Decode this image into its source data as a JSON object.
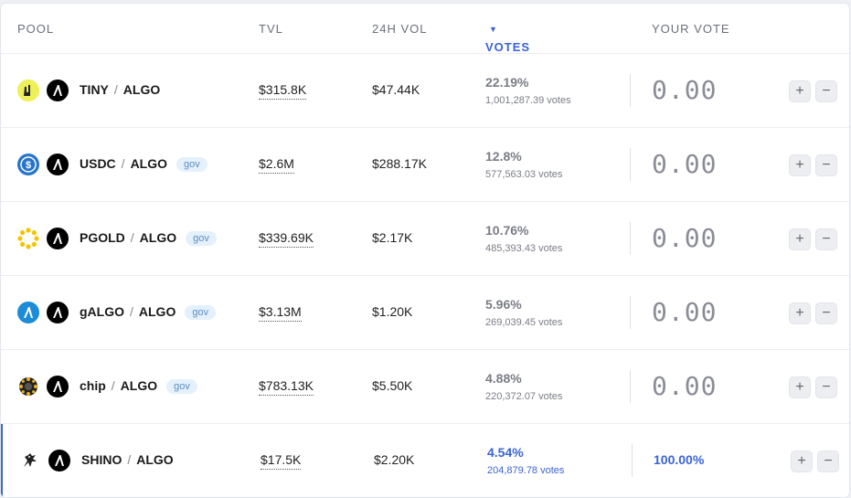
{
  "header": {
    "pool": "POOL",
    "tvl": "TVL",
    "vol": "24H VOL",
    "votes": "VOTES",
    "your_vote": "YOUR VOTE"
  },
  "rows": [
    {
      "token": "TINY",
      "base": "ALGO",
      "gov": "",
      "tvl": "$315.8K",
      "vol": "$47.44K",
      "pct": "22.19%",
      "votes": "1,001,287.39 votes",
      "your_vote": "0.00",
      "icon": "tiny-token-icon"
    },
    {
      "token": "USDC",
      "base": "ALGO",
      "gov": "gov",
      "tvl": "$2.6M",
      "vol": "$288.17K",
      "pct": "12.8%",
      "votes": "577,563.03 votes",
      "your_vote": "0.00",
      "icon": "usdc-token-icon"
    },
    {
      "token": "PGOLD",
      "base": "ALGO",
      "gov": "gov",
      "tvl": "$339.69K",
      "vol": "$2.17K",
      "pct": "10.76%",
      "votes": "485,393.43 votes",
      "your_vote": "0.00",
      "icon": "pgold-token-icon"
    },
    {
      "token": "gALGO",
      "base": "ALGO",
      "gov": "gov",
      "tvl": "$3.13M",
      "vol": "$1.20K",
      "pct": "5.96%",
      "votes": "269,039.45 votes",
      "your_vote": "0.00",
      "icon": "galgo-token-icon"
    },
    {
      "token": "chip",
      "base": "ALGO",
      "gov": "gov",
      "tvl": "$783.13K",
      "vol": "$5.50K",
      "pct": "4.88%",
      "votes": "220,372.07 votes",
      "your_vote": "0.00",
      "icon": "chip-token-icon"
    },
    {
      "token": "SHINO",
      "base": "ALGO",
      "gov": "",
      "tvl": "$17.5K",
      "vol": "$2.20K",
      "pct": "4.54%",
      "votes": "204,879.78 votes",
      "your_vote": "100.00%",
      "icon": "shino-token-icon"
    }
  ],
  "buttons": {
    "plus": "+",
    "minus": "−"
  },
  "colors": {
    "accent": "#3a63d6",
    "gov_bg": "#e4f0fb",
    "muted": "#7a7d86"
  }
}
